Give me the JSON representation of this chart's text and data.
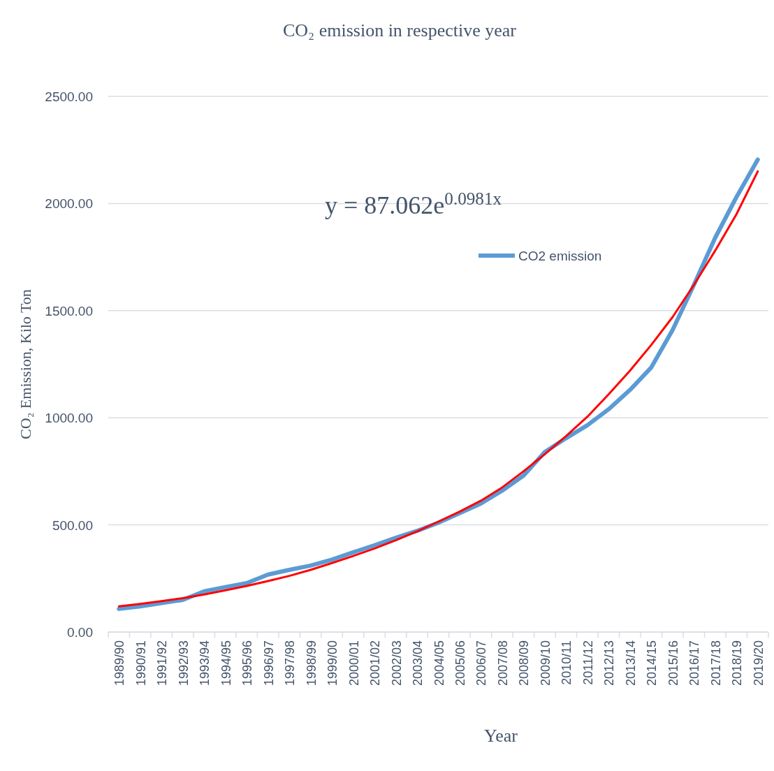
{
  "chart_data": {
    "type": "line",
    "title": "CO₂ emission in respective year",
    "xlabel": "Year",
    "ylabel": "CO₂ Emission, Kilo Ton",
    "categories": [
      "1989/90",
      "1990/91",
      "1991/92",
      "1992/93",
      "1993/94",
      "1994/95",
      "1995/96",
      "1996/97",
      "1997/98",
      "1998/99",
      "1999/00",
      "2000/01",
      "2001/02",
      "2002/03",
      "2003/04",
      "2004/05",
      "2005/06",
      "2006/07",
      "2007/08",
      "2008/09",
      "2009/10",
      "2010/11",
      "2011/12",
      "2012/13",
      "2013/14",
      "2014/15",
      "2015/16",
      "2016/17",
      "2017/18",
      "2018/19",
      "2019/20"
    ],
    "series": [
      {
        "name": "CO2 emission",
        "color": "#5b9bd5",
        "values": [
          108,
          120,
          135,
          150,
          190,
          210,
          228,
          268,
          290,
          310,
          338,
          372,
          405,
          440,
          472,
          510,
          555,
          600,
          660,
          730,
          840,
          905,
          965,
          1040,
          1130,
          1235,
          1410,
          1620,
          1840,
          2030,
          2205
        ]
      },
      {
        "color": "#ff0000",
        "values": [
          120,
          131,
          144,
          158,
          175,
          195,
          215,
          238,
          262,
          290,
          322,
          355,
          390,
          428,
          470,
          515,
          562,
          613,
          675,
          750,
          830,
          915,
          1005,
          1110,
          1220,
          1340,
          1470,
          1620,
          1780,
          1950,
          2150
        ]
      }
    ],
    "ylim": [
      0,
      2500
    ],
    "yticks": [
      {
        "value": 0,
        "label": "0.00"
      },
      {
        "value": 500,
        "label": "500.00"
      },
      {
        "value": 1000,
        "label": "1000.00"
      },
      {
        "value": 1500,
        "label": "1500.00"
      },
      {
        "value": 2000,
        "label": "2000.00"
      },
      {
        "value": 2500,
        "label": "2500.00"
      }
    ],
    "grid": "y",
    "legend": "top right",
    "marker": "none",
    "annotations": [
      "y = 87.062e$^{0.0981x}$"
    ]
  }
}
